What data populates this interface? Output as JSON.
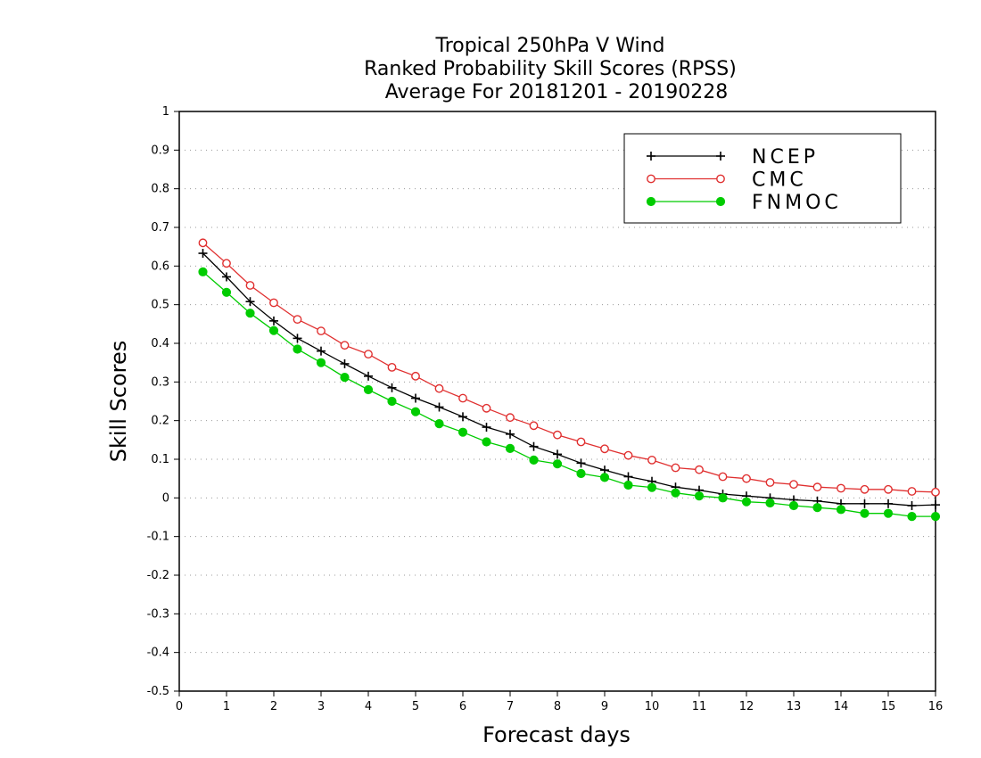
{
  "chart_data": {
    "type": "line",
    "title_lines": [
      "Tropical 250hPa V Wind",
      "Ranked Probability Skill Scores (RPSS)",
      "Average For 20181201 - 20190228"
    ],
    "xlabel": "Forecast days",
    "ylabel": "Skill Scores",
    "xlim": [
      0,
      16
    ],
    "ylim": [
      -0.5,
      1
    ],
    "x_ticks": [
      "0",
      "1",
      "2",
      "3",
      "4",
      "5",
      "6",
      "7",
      "8",
      "9",
      "10",
      "11",
      "12",
      "13",
      "14",
      "15",
      "16"
    ],
    "y_ticks": [
      "1",
      "0.9",
      "0.8",
      "0.7",
      "0.6",
      "0.5",
      "0.4",
      "0.3",
      "0.2",
      "0.1",
      "0",
      "-0.1",
      "-0.2",
      "-0.3",
      "-0.4",
      "-0.5"
    ],
    "grid": true,
    "legend_position": "top-right",
    "x": [
      0.5,
      1,
      1.5,
      2,
      2.5,
      3,
      3.5,
      4,
      4.5,
      5,
      5.5,
      6,
      6.5,
      7,
      7.5,
      8,
      8.5,
      9,
      9.5,
      10,
      10.5,
      11,
      11.5,
      12,
      12.5,
      13,
      13.5,
      14,
      14.5,
      15,
      15.5,
      16
    ],
    "series": [
      {
        "name": "NCEP",
        "color": "#000000",
        "marker": "plus",
        "values": [
          0.633,
          0.572,
          0.508,
          0.458,
          0.413,
          0.38,
          0.347,
          0.315,
          0.285,
          0.258,
          0.235,
          0.21,
          0.183,
          0.165,
          0.133,
          0.113,
          0.09,
          0.072,
          0.055,
          0.043,
          0.028,
          0.02,
          0.01,
          0.005,
          0.0,
          -0.005,
          -0.008,
          -0.015,
          -0.015,
          -0.015,
          -0.02,
          -0.018
        ]
      },
      {
        "name": "CMC",
        "color": "#e03030",
        "marker": "open-circle",
        "values": [
          0.66,
          0.607,
          0.55,
          0.505,
          0.462,
          0.432,
          0.395,
          0.372,
          0.338,
          0.315,
          0.283,
          0.258,
          0.232,
          0.208,
          0.187,
          0.163,
          0.145,
          0.127,
          0.11,
          0.098,
          0.078,
          0.073,
          0.055,
          0.05,
          0.04,
          0.035,
          0.028,
          0.025,
          0.022,
          0.022,
          0.017,
          0.015
        ]
      },
      {
        "name": "FNMOC",
        "color": "#00cc00",
        "marker": "filled-circle",
        "values": [
          0.585,
          0.532,
          0.478,
          0.433,
          0.385,
          0.35,
          0.312,
          0.28,
          0.25,
          0.223,
          0.192,
          0.17,
          0.145,
          0.128,
          0.098,
          0.088,
          0.063,
          0.053,
          0.033,
          0.027,
          0.013,
          0.005,
          0.0,
          -0.01,
          -0.013,
          -0.02,
          -0.025,
          -0.03,
          -0.04,
          -0.04,
          -0.048,
          -0.048
        ]
      }
    ]
  }
}
